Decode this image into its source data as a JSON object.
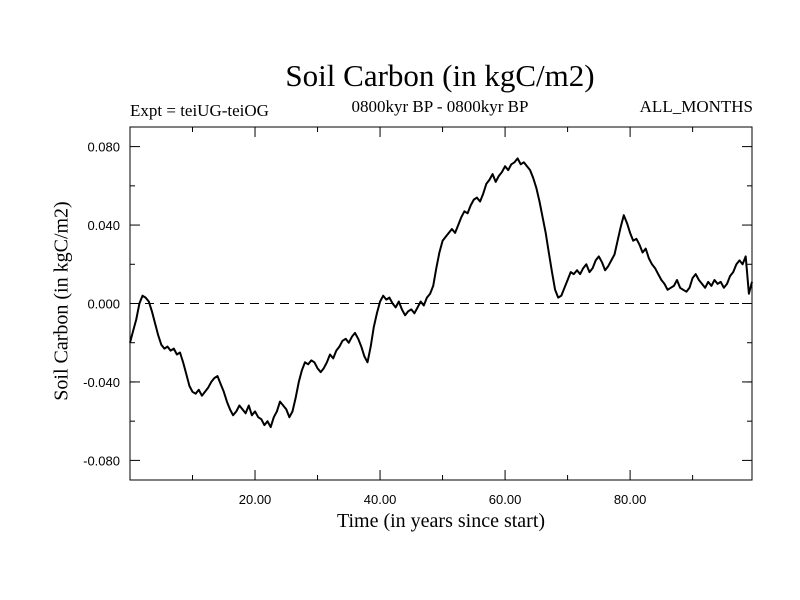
{
  "header": {
    "title": "Soil Carbon (in kgC/m2)",
    "experiment": "Expt = teiUG-teiOG",
    "period": "0800kyr BP - 0800kyr BP",
    "months": "ALL_MONTHS"
  },
  "chart_data": {
    "type": "line",
    "title": "Soil Carbon (in kgC/m2)",
    "xlabel": "Time (in years since start)",
    "ylabel": "Soil Carbon (in kgC/m2)",
    "xlim": [
      0,
      99.5
    ],
    "ylim": [
      -0.09,
      0.09
    ],
    "x_ticks": [
      20,
      40,
      60,
      80
    ],
    "x_tick_labels": [
      "20.00",
      "40.00",
      "60.00",
      "80.00"
    ],
    "y_ticks": [
      0.08,
      0.04,
      0.0,
      -0.04,
      -0.08
    ],
    "y_tick_labels": [
      "0.080",
      "0.040",
      "0.000",
      "-0.040",
      "-0.080"
    ],
    "reference_line": {
      "y": 0.0,
      "style": "dashed"
    },
    "grid": false,
    "series": [
      {
        "x": [
          0,
          0.5,
          1,
          1.5,
          2,
          2.5,
          3,
          3.5,
          4,
          4.5,
          5,
          5.5,
          6,
          6.5,
          7,
          7.5,
          8,
          8.5,
          9,
          9.5,
          10,
          10.5,
          11,
          11.5,
          12,
          12.5,
          13,
          13.5,
          14,
          14.5,
          15,
          15.5,
          16,
          16.5,
          17,
          17.5,
          18,
          18.5,
          19,
          19.5,
          20,
          20.5,
          21,
          21.5,
          22,
          22.5,
          23,
          23.5,
          24,
          24.5,
          25,
          25.5,
          26,
          26.5,
          27,
          27.5,
          28,
          28.5,
          29,
          29.5,
          30,
          30.5,
          31,
          31.5,
          32,
          32.5,
          33,
          33.5,
          34,
          34.5,
          35,
          35.5,
          36,
          36.5,
          37,
          37.5,
          38,
          38.5,
          39,
          39.5,
          40,
          40.5,
          41,
          41.5,
          42,
          42.5,
          43,
          43.5,
          44,
          44.5,
          45,
          45.5,
          46,
          46.5,
          47,
          47.5,
          48,
          48.5,
          49,
          49.5,
          50,
          50.5,
          51,
          51.5,
          52,
          52.5,
          53,
          53.5,
          54,
          54.5,
          55,
          55.5,
          56,
          56.5,
          57,
          57.5,
          58,
          58.5,
          59,
          59.5,
          60,
          60.5,
          61,
          61.5,
          62,
          62.5,
          63,
          63.5,
          64,
          64.5,
          65,
          65.5,
          66,
          66.5,
          67,
          67.5,
          68,
          68.5,
          69,
          69.5,
          70,
          70.5,
          71,
          71.5,
          72,
          72.5,
          73,
          73.5,
          74,
          74.5,
          75,
          75.5,
          76,
          76.5,
          77,
          77.5,
          78,
          78.5,
          79,
          79.5,
          80,
          80.5,
          81,
          81.5,
          82,
          82.5,
          83,
          83.5,
          84,
          84.5,
          85,
          85.5,
          86,
          86.5,
          87,
          87.5,
          88,
          88.5,
          89,
          89.5,
          90,
          90.5,
          91,
          91.5,
          92,
          92.5,
          93,
          93.5,
          94,
          94.5,
          95,
          95.5,
          96,
          96.5,
          97,
          97.5,
          98,
          98.5,
          99,
          99.5
        ],
        "y": [
          -0.02,
          -0.014,
          -0.008,
          0.0,
          0.004,
          0.003,
          0.001,
          -0.004,
          -0.01,
          -0.016,
          -0.021,
          -0.023,
          -0.022,
          -0.024,
          -0.023,
          -0.026,
          -0.025,
          -0.03,
          -0.036,
          -0.042,
          -0.045,
          -0.046,
          -0.044,
          -0.047,
          -0.045,
          -0.043,
          -0.04,
          -0.038,
          -0.037,
          -0.041,
          -0.045,
          -0.05,
          -0.054,
          -0.057,
          -0.055,
          -0.052,
          -0.054,
          -0.056,
          -0.052,
          -0.057,
          -0.055,
          -0.058,
          -0.059,
          -0.062,
          -0.06,
          -0.063,
          -0.058,
          -0.055,
          -0.05,
          -0.052,
          -0.054,
          -0.058,
          -0.055,
          -0.048,
          -0.04,
          -0.034,
          -0.03,
          -0.031,
          -0.029,
          -0.03,
          -0.033,
          -0.035,
          -0.033,
          -0.03,
          -0.026,
          -0.028,
          -0.024,
          -0.022,
          -0.019,
          -0.018,
          -0.02,
          -0.017,
          -0.015,
          -0.018,
          -0.022,
          -0.027,
          -0.03,
          -0.022,
          -0.012,
          -0.005,
          0.001,
          0.004,
          0.002,
          0.003,
          0.0,
          -0.002,
          0.001,
          -0.003,
          -0.006,
          -0.004,
          -0.003,
          -0.005,
          -0.002,
          0.001,
          -0.001,
          0.003,
          0.005,
          0.009,
          0.018,
          0.026,
          0.032,
          0.034,
          0.036,
          0.038,
          0.036,
          0.04,
          0.044,
          0.047,
          0.046,
          0.05,
          0.053,
          0.054,
          0.052,
          0.056,
          0.061,
          0.063,
          0.066,
          0.062,
          0.065,
          0.067,
          0.07,
          0.068,
          0.071,
          0.072,
          0.074,
          0.071,
          0.072,
          0.07,
          0.068,
          0.064,
          0.059,
          0.052,
          0.044,
          0.036,
          0.026,
          0.016,
          0.007,
          0.003,
          0.004,
          0.008,
          0.012,
          0.016,
          0.015,
          0.017,
          0.015,
          0.018,
          0.02,
          0.016,
          0.018,
          0.022,
          0.024,
          0.021,
          0.017,
          0.019,
          0.022,
          0.025,
          0.032,
          0.039,
          0.045,
          0.041,
          0.036,
          0.032,
          0.033,
          0.03,
          0.026,
          0.028,
          0.023,
          0.02,
          0.018,
          0.015,
          0.012,
          0.01,
          0.007,
          0.008,
          0.009,
          0.012,
          0.008,
          0.007,
          0.006,
          0.008,
          0.013,
          0.015,
          0.012,
          0.01,
          0.008,
          0.011,
          0.009,
          0.012,
          0.01,
          0.011,
          0.008,
          0.01,
          0.014,
          0.016,
          0.02,
          0.022,
          0.02,
          0.024,
          0.005,
          0.011
        ]
      }
    ]
  }
}
